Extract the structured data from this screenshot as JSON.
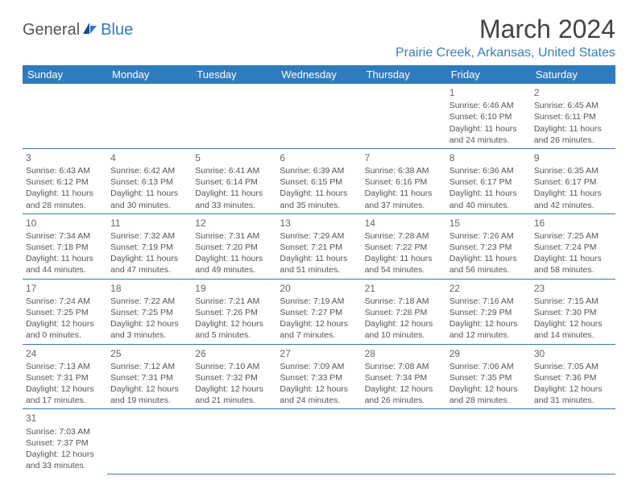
{
  "brand": {
    "part1": "General",
    "part2": "Blue"
  },
  "title": "March 2024",
  "location": "Prairie Creek, Arkansas, United States",
  "colors": {
    "accent": "#2f7bbf",
    "text": "#555",
    "title": "#444"
  },
  "weekdays": [
    "Sunday",
    "Monday",
    "Tuesday",
    "Wednesday",
    "Thursday",
    "Friday",
    "Saturday"
  ],
  "weeks": [
    [
      null,
      null,
      null,
      null,
      null,
      {
        "n": "1",
        "sr": "Sunrise: 6:46 AM",
        "ss": "Sunset: 6:10 PM",
        "d1": "Daylight: 11 hours",
        "d2": "and 24 minutes."
      },
      {
        "n": "2",
        "sr": "Sunrise: 6:45 AM",
        "ss": "Sunset: 6:11 PM",
        "d1": "Daylight: 11 hours",
        "d2": "and 26 minutes."
      }
    ],
    [
      {
        "n": "3",
        "sr": "Sunrise: 6:43 AM",
        "ss": "Sunset: 6:12 PM",
        "d1": "Daylight: 11 hours",
        "d2": "and 28 minutes."
      },
      {
        "n": "4",
        "sr": "Sunrise: 6:42 AM",
        "ss": "Sunset: 6:13 PM",
        "d1": "Daylight: 11 hours",
        "d2": "and 30 minutes."
      },
      {
        "n": "5",
        "sr": "Sunrise: 6:41 AM",
        "ss": "Sunset: 6:14 PM",
        "d1": "Daylight: 11 hours",
        "d2": "and 33 minutes."
      },
      {
        "n": "6",
        "sr": "Sunrise: 6:39 AM",
        "ss": "Sunset: 6:15 PM",
        "d1": "Daylight: 11 hours",
        "d2": "and 35 minutes."
      },
      {
        "n": "7",
        "sr": "Sunrise: 6:38 AM",
        "ss": "Sunset: 6:16 PM",
        "d1": "Daylight: 11 hours",
        "d2": "and 37 minutes."
      },
      {
        "n": "8",
        "sr": "Sunrise: 6:36 AM",
        "ss": "Sunset: 6:17 PM",
        "d1": "Daylight: 11 hours",
        "d2": "and 40 minutes."
      },
      {
        "n": "9",
        "sr": "Sunrise: 6:35 AM",
        "ss": "Sunset: 6:17 PM",
        "d1": "Daylight: 11 hours",
        "d2": "and 42 minutes."
      }
    ],
    [
      {
        "n": "10",
        "sr": "Sunrise: 7:34 AM",
        "ss": "Sunset: 7:18 PM",
        "d1": "Daylight: 11 hours",
        "d2": "and 44 minutes."
      },
      {
        "n": "11",
        "sr": "Sunrise: 7:32 AM",
        "ss": "Sunset: 7:19 PM",
        "d1": "Daylight: 11 hours",
        "d2": "and 47 minutes."
      },
      {
        "n": "12",
        "sr": "Sunrise: 7:31 AM",
        "ss": "Sunset: 7:20 PM",
        "d1": "Daylight: 11 hours",
        "d2": "and 49 minutes."
      },
      {
        "n": "13",
        "sr": "Sunrise: 7:29 AM",
        "ss": "Sunset: 7:21 PM",
        "d1": "Daylight: 11 hours",
        "d2": "and 51 minutes."
      },
      {
        "n": "14",
        "sr": "Sunrise: 7:28 AM",
        "ss": "Sunset: 7:22 PM",
        "d1": "Daylight: 11 hours",
        "d2": "and 54 minutes."
      },
      {
        "n": "15",
        "sr": "Sunrise: 7:26 AM",
        "ss": "Sunset: 7:23 PM",
        "d1": "Daylight: 11 hours",
        "d2": "and 56 minutes."
      },
      {
        "n": "16",
        "sr": "Sunrise: 7:25 AM",
        "ss": "Sunset: 7:24 PM",
        "d1": "Daylight: 11 hours",
        "d2": "and 58 minutes."
      }
    ],
    [
      {
        "n": "17",
        "sr": "Sunrise: 7:24 AM",
        "ss": "Sunset: 7:25 PM",
        "d1": "Daylight: 12 hours",
        "d2": "and 0 minutes."
      },
      {
        "n": "18",
        "sr": "Sunrise: 7:22 AM",
        "ss": "Sunset: 7:25 PM",
        "d1": "Daylight: 12 hours",
        "d2": "and 3 minutes."
      },
      {
        "n": "19",
        "sr": "Sunrise: 7:21 AM",
        "ss": "Sunset: 7:26 PM",
        "d1": "Daylight: 12 hours",
        "d2": "and 5 minutes."
      },
      {
        "n": "20",
        "sr": "Sunrise: 7:19 AM",
        "ss": "Sunset: 7:27 PM",
        "d1": "Daylight: 12 hours",
        "d2": "and 7 minutes."
      },
      {
        "n": "21",
        "sr": "Sunrise: 7:18 AM",
        "ss": "Sunset: 7:28 PM",
        "d1": "Daylight: 12 hours",
        "d2": "and 10 minutes."
      },
      {
        "n": "22",
        "sr": "Sunrise: 7:16 AM",
        "ss": "Sunset: 7:29 PM",
        "d1": "Daylight: 12 hours",
        "d2": "and 12 minutes."
      },
      {
        "n": "23",
        "sr": "Sunrise: 7:15 AM",
        "ss": "Sunset: 7:30 PM",
        "d1": "Daylight: 12 hours",
        "d2": "and 14 minutes."
      }
    ],
    [
      {
        "n": "24",
        "sr": "Sunrise: 7:13 AM",
        "ss": "Sunset: 7:31 PM",
        "d1": "Daylight: 12 hours",
        "d2": "and 17 minutes."
      },
      {
        "n": "25",
        "sr": "Sunrise: 7:12 AM",
        "ss": "Sunset: 7:31 PM",
        "d1": "Daylight: 12 hours",
        "d2": "and 19 minutes."
      },
      {
        "n": "26",
        "sr": "Sunrise: 7:10 AM",
        "ss": "Sunset: 7:32 PM",
        "d1": "Daylight: 12 hours",
        "d2": "and 21 minutes."
      },
      {
        "n": "27",
        "sr": "Sunrise: 7:09 AM",
        "ss": "Sunset: 7:33 PM",
        "d1": "Daylight: 12 hours",
        "d2": "and 24 minutes."
      },
      {
        "n": "28",
        "sr": "Sunrise: 7:08 AM",
        "ss": "Sunset: 7:34 PM",
        "d1": "Daylight: 12 hours",
        "d2": "and 26 minutes."
      },
      {
        "n": "29",
        "sr": "Sunrise: 7:06 AM",
        "ss": "Sunset: 7:35 PM",
        "d1": "Daylight: 12 hours",
        "d2": "and 28 minutes."
      },
      {
        "n": "30",
        "sr": "Sunrise: 7:05 AM",
        "ss": "Sunset: 7:36 PM",
        "d1": "Daylight: 12 hours",
        "d2": "and 31 minutes."
      }
    ],
    [
      {
        "n": "31",
        "sr": "Sunrise: 7:03 AM",
        "ss": "Sunset: 7:37 PM",
        "d1": "Daylight: 12 hours",
        "d2": "and 33 minutes."
      },
      null,
      null,
      null,
      null,
      null,
      null
    ]
  ]
}
